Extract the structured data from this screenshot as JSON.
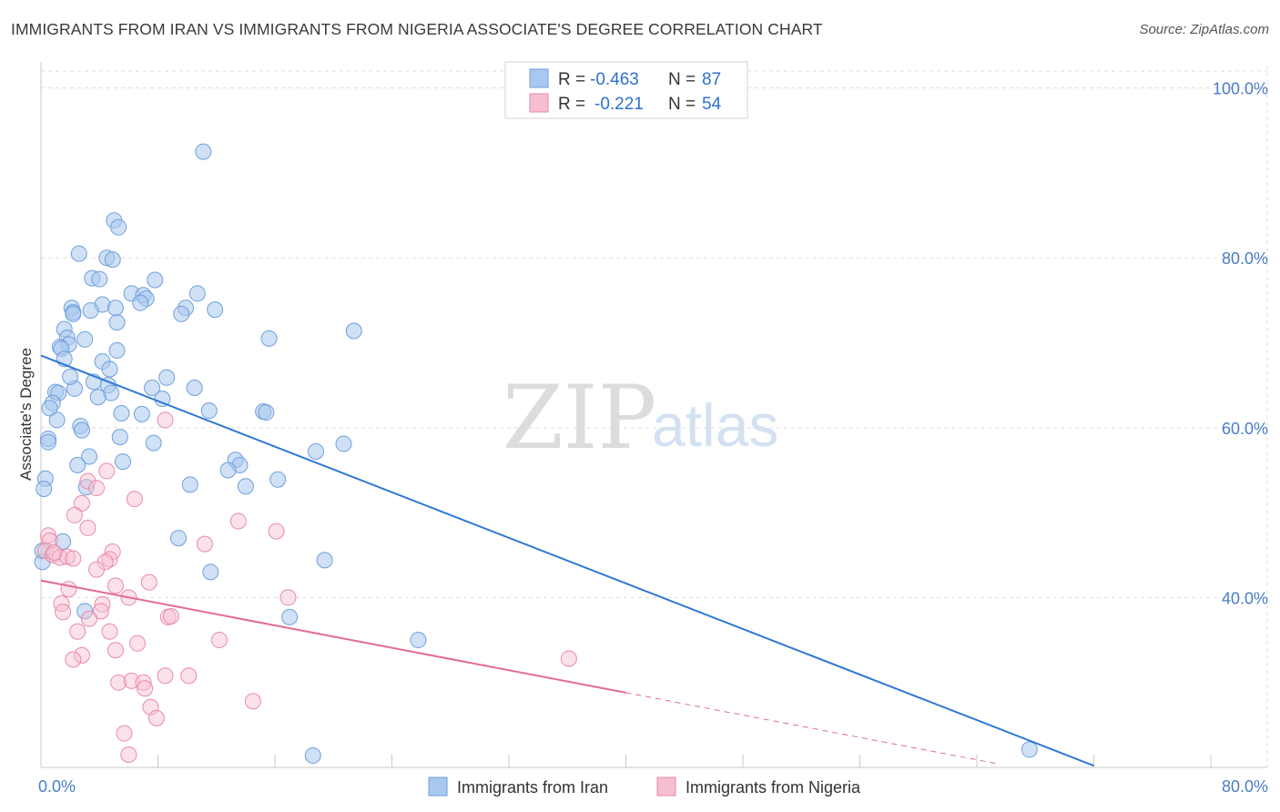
{
  "title": "IMMIGRANTS FROM IRAN VS IMMIGRANTS FROM NIGERIA ASSOCIATE'S DEGREE CORRELATION CHART",
  "source": "Source: ZipAtlas.com",
  "watermark": {
    "zip": "ZIP",
    "atlas": "atlas"
  },
  "colors": {
    "iran_fill": "#a9c8ef",
    "iran_stroke": "#6f9fdc",
    "iran_line": "#2f78d6",
    "nigeria_fill": "#f6bfd0",
    "nigeria_stroke": "#ea8aa8",
    "nigeria_line": "#e46a93",
    "grid": "#dddddd",
    "tick_text": "#4a7cc9"
  },
  "legend": {
    "items": [
      {
        "r_label": "R =",
        "r_value": "-0.463",
        "n_label": "N =",
        "n_value": "87"
      },
      {
        "r_label": "R =",
        "r_value": "-0.221",
        "n_label": "N =",
        "n_value": "54"
      }
    ]
  },
  "bottom_legend": {
    "iran": "Immigrants from Iran",
    "nigeria": "Immigrants from Nigeria"
  },
  "chart_data": {
    "type": "scatter",
    "title": "IMMIGRANTS FROM IRAN VS IMMIGRANTS FROM NIGERIA ASSOCIATE'S DEGREE CORRELATION CHART",
    "xlabel": "",
    "ylabel": "Associate's Degree",
    "xlim": [
      0,
      80
    ],
    "ylim": [
      20,
      102
    ],
    "x_tick_labels": [
      "0.0%",
      "80.0%"
    ],
    "y_ticks": [
      {
        "value": 100,
        "label": "100.0%"
      },
      {
        "value": 80,
        "label": "80.0%"
      },
      {
        "value": 60,
        "label": "60.0%"
      },
      {
        "value": 40,
        "label": "40.0%"
      }
    ],
    "x_minor_ticks": [
      0,
      8,
      16,
      24,
      32,
      40,
      48,
      56,
      64,
      72,
      80
    ],
    "grid": true,
    "series": [
      {
        "name": "Immigrants from Iran",
        "r": -0.463,
        "n": 87,
        "trend": {
          "x": [
            0,
            72
          ],
          "y": [
            68.5,
            20.2
          ]
        },
        "points": [
          [
            11.1,
            92.5
          ],
          [
            5.0,
            84.4
          ],
          [
            5.3,
            83.6
          ],
          [
            2.6,
            80.5
          ],
          [
            4.5,
            80.0
          ],
          [
            4.9,
            79.8
          ],
          [
            3.5,
            77.6
          ],
          [
            4.0,
            77.5
          ],
          [
            7.8,
            77.4
          ],
          [
            6.2,
            75.8
          ],
          [
            10.7,
            75.8
          ],
          [
            7.0,
            75.6
          ],
          [
            7.2,
            75.2
          ],
          [
            6.8,
            74.7
          ],
          [
            4.2,
            74.5
          ],
          [
            5.1,
            74.1
          ],
          [
            2.1,
            74.1
          ],
          [
            9.9,
            74.1
          ],
          [
            11.9,
            73.9
          ],
          [
            3.4,
            73.8
          ],
          [
            2.2,
            73.6
          ],
          [
            2.2,
            73.4
          ],
          [
            9.6,
            73.4
          ],
          [
            5.2,
            72.4
          ],
          [
            1.6,
            71.6
          ],
          [
            21.4,
            71.4
          ],
          [
            1.8,
            70.6
          ],
          [
            15.6,
            70.5
          ],
          [
            3.0,
            70.4
          ],
          [
            1.9,
            69.8
          ],
          [
            1.3,
            69.5
          ],
          [
            1.4,
            69.3
          ],
          [
            5.2,
            69.1
          ],
          [
            1.6,
            68.1
          ],
          [
            4.2,
            67.8
          ],
          [
            4.7,
            66.9
          ],
          [
            8.6,
            65.9
          ],
          [
            3.6,
            65.4
          ],
          [
            4.6,
            65.0
          ],
          [
            7.6,
            64.7
          ],
          [
            10.5,
            64.7
          ],
          [
            2.3,
            64.6
          ],
          [
            1.0,
            64.2
          ],
          [
            1.2,
            64.1
          ],
          [
            4.8,
            64.1
          ],
          [
            3.9,
            63.6
          ],
          [
            8.3,
            63.4
          ],
          [
            0.8,
            62.9
          ],
          [
            0.6,
            62.3
          ],
          [
            11.5,
            62.0
          ],
          [
            15.2,
            61.9
          ],
          [
            15.4,
            61.8
          ],
          [
            5.5,
            61.7
          ],
          [
            6.9,
            61.6
          ],
          [
            1.1,
            60.9
          ],
          [
            2.7,
            60.2
          ],
          [
            2.8,
            59.7
          ],
          [
            5.4,
            58.9
          ],
          [
            0.5,
            58.7
          ],
          [
            0.5,
            58.3
          ],
          [
            7.7,
            58.2
          ],
          [
            20.7,
            58.1
          ],
          [
            18.8,
            57.2
          ],
          [
            3.3,
            56.6
          ],
          [
            13.3,
            56.2
          ],
          [
            5.6,
            56.0
          ],
          [
            2.5,
            55.6
          ],
          [
            13.6,
            55.6
          ],
          [
            12.8,
            55.0
          ],
          [
            0.3,
            54.0
          ],
          [
            16.2,
            53.9
          ],
          [
            10.2,
            53.3
          ],
          [
            14.0,
            53.1
          ],
          [
            3.1,
            53.0
          ],
          [
            0.2,
            52.8
          ],
          [
            9.4,
            47.0
          ],
          [
            1.5,
            46.6
          ],
          [
            0.1,
            44.2
          ],
          [
            19.4,
            44.4
          ],
          [
            11.6,
            43.0
          ],
          [
            3.0,
            38.4
          ],
          [
            17.0,
            37.7
          ],
          [
            25.8,
            35.0
          ],
          [
            18.6,
            21.4
          ],
          [
            67.6,
            22.1
          ],
          [
            0.1,
            45.5
          ],
          [
            2.0,
            66.0
          ]
        ]
      },
      {
        "name": "Immigrants from Nigeria",
        "r": -0.221,
        "n": 54,
        "trend": {
          "x": [
            0,
            40
          ],
          "y": [
            42.0,
            28.8
          ]
        },
        "trend_dashed": {
          "x": [
            40,
            65.5
          ],
          "y": [
            28.8,
            20.4
          ]
        },
        "points": [
          [
            8.5,
            60.9
          ],
          [
            4.5,
            54.9
          ],
          [
            3.2,
            53.7
          ],
          [
            3.8,
            52.9
          ],
          [
            6.4,
            51.6
          ],
          [
            2.8,
            51.1
          ],
          [
            2.3,
            49.7
          ],
          [
            13.5,
            49.0
          ],
          [
            3.2,
            48.2
          ],
          [
            16.1,
            47.8
          ],
          [
            0.5,
            47.3
          ],
          [
            0.6,
            46.7
          ],
          [
            11.2,
            46.3
          ],
          [
            0.3,
            45.5
          ],
          [
            4.9,
            45.4
          ],
          [
            0.8,
            45.0
          ],
          [
            1.3,
            44.7
          ],
          [
            1.8,
            44.8
          ],
          [
            2.2,
            44.6
          ],
          [
            4.7,
            44.5
          ],
          [
            4.4,
            44.2
          ],
          [
            3.8,
            43.3
          ],
          [
            7.4,
            41.8
          ],
          [
            5.1,
            41.4
          ],
          [
            1.9,
            41.0
          ],
          [
            6.0,
            40.0
          ],
          [
            16.9,
            40.0
          ],
          [
            1.4,
            39.3
          ],
          [
            4.2,
            39.2
          ],
          [
            4.1,
            38.4
          ],
          [
            1.5,
            38.3
          ],
          [
            8.7,
            37.7
          ],
          [
            8.9,
            37.8
          ],
          [
            3.3,
            37.5
          ],
          [
            2.5,
            36.0
          ],
          [
            4.7,
            36.0
          ],
          [
            12.2,
            35.0
          ],
          [
            6.6,
            34.6
          ],
          [
            5.1,
            33.8
          ],
          [
            2.8,
            33.2
          ],
          [
            2.2,
            32.7
          ],
          [
            36.1,
            32.8
          ],
          [
            8.5,
            30.8
          ],
          [
            10.1,
            30.8
          ],
          [
            5.3,
            30.0
          ],
          [
            6.2,
            30.2
          ],
          [
            7.0,
            30.0
          ],
          [
            7.1,
            29.3
          ],
          [
            14.5,
            27.8
          ],
          [
            7.5,
            27.1
          ],
          [
            7.9,
            25.8
          ],
          [
            5.7,
            24.0
          ],
          [
            6.0,
            21.5
          ],
          [
            0.9,
            45.3
          ]
        ]
      }
    ]
  }
}
